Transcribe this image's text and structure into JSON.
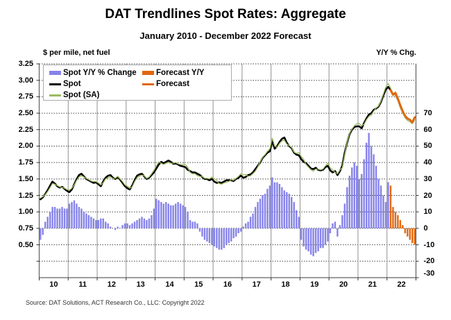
{
  "title": "DAT Trendlines Spot Rates: Aggregate",
  "subtitle": "January 2010 - December 2022 Forecast",
  "left_unit_label": "$ per mile, net fuel",
  "right_unit_label": "Y/Y % Chg.",
  "source": "Source: DAT Solutions, ACT Research Co., LLC: Copyright 2022",
  "colors": {
    "spot_yy_bar": "#8683ea",
    "forecast_orange": "#e2670e",
    "spot_line": "#000000",
    "spot_sa_line": "#9cbb61",
    "year_gridline": "#909090",
    "dotted_gridline": "#404040",
    "plot_border": "#606060"
  },
  "legend": [
    {
      "label": "Spot Y/Y % Change",
      "swatch": "bar",
      "color": "#8683ea",
      "col": 1,
      "row": 1
    },
    {
      "label": "Forecast Y/Y",
      "swatch": "bar",
      "color": "#e2670e",
      "col": 2,
      "row": 1
    },
    {
      "label": "Spot",
      "swatch": "line",
      "color": "#000000",
      "col": 1,
      "row": 2
    },
    {
      "label": "Forecast",
      "swatch": "line",
      "color": "#e2670e",
      "col": 2,
      "row": 2
    },
    {
      "label": "Spot (SA)",
      "swatch": "line",
      "color": "#9cbb61",
      "col": 1,
      "row": 3
    }
  ],
  "chart_data": {
    "type": "bar",
    "subtype": "combo-bar-line",
    "x_unit": "month",
    "x_start": "2010-01",
    "x_end": "2022-12",
    "months_total": 156,
    "x_tick_labels": [
      "10",
      "11",
      "12",
      "13",
      "14",
      "15",
      "16",
      "17",
      "18",
      "19",
      "20",
      "21",
      "22"
    ],
    "grid": true,
    "legend_position": "top-left",
    "left_axis": {
      "label": "$ per mile, net fuel",
      "min": 0,
      "max": 3.25,
      "grid_step": 0.25,
      "tick_labels": [
        "3.25",
        "3.00",
        "2.75",
        "2.50",
        "2.25",
        "2.00",
        "1.75",
        "1.50",
        "1.25",
        "1.00",
        "0.75",
        "0.50"
      ]
    },
    "right_axis": {
      "label": "Y/Y % Chg.",
      "min": -30,
      "max": 100,
      "ticks": [
        70,
        60,
        50,
        40,
        30,
        20,
        10,
        0,
        -10,
        -20,
        -30
      ]
    },
    "series": [
      {
        "name": "Spot Y/Y % Change",
        "type": "bar",
        "axis": "right",
        "color": "#8683ea",
        "start_index": 0,
        "values": [
          -7,
          -4,
          4,
          7,
          10,
          13,
          13,
          12,
          12,
          13,
          12,
          12,
          15,
          16,
          17,
          15,
          13,
          12,
          10,
          9,
          8,
          7,
          6,
          5,
          5,
          6,
          6,
          4,
          3,
          1,
          0,
          -1,
          1,
          0,
          2,
          3,
          3,
          2,
          3,
          4,
          5,
          6,
          7,
          6,
          5,
          6,
          8,
          12,
          18,
          17,
          16,
          15,
          16,
          15,
          14,
          14,
          15,
          16,
          15,
          14,
          13,
          10,
          5,
          4,
          4,
          3,
          -2,
          -5,
          -7,
          -8,
          -9,
          -10,
          -11,
          -12,
          -13,
          -13,
          -12,
          -10,
          -9,
          -8,
          -6,
          -5,
          -3,
          -2,
          1,
          3,
          4,
          7,
          9,
          13,
          16,
          18,
          20,
          21,
          24,
          26,
          31,
          28,
          28,
          27,
          25,
          23,
          22,
          21,
          19,
          16,
          11,
          7,
          -7,
          -11,
          -13,
          -14,
          -16,
          -17,
          -15,
          -14,
          -12,
          -12,
          -10,
          -8,
          -3,
          3,
          4,
          -5,
          2,
          8,
          15,
          25,
          32,
          37,
          40,
          38,
          30,
          33,
          42,
          52,
          58,
          50,
          45,
          38,
          30,
          26,
          20,
          16,
          28
        ]
      },
      {
        "name": "Forecast Y/Y",
        "type": "bar",
        "axis": "right",
        "color": "#e2670e",
        "start_index": 145,
        "values": [
          26,
          13,
          10,
          8,
          5,
          2,
          -3,
          -5,
          -7,
          -9,
          -10
        ]
      },
      {
        "name": "Spot",
        "type": "line",
        "axis": "left",
        "color": "#000000",
        "width": 2.6,
        "start_index": 0,
        "values": [
          1.19,
          1.22,
          1.27,
          1.33,
          1.4,
          1.46,
          1.43,
          1.39,
          1.37,
          1.38,
          1.35,
          1.32,
          1.3,
          1.34,
          1.42,
          1.5,
          1.56,
          1.58,
          1.54,
          1.5,
          1.48,
          1.46,
          1.44,
          1.45,
          1.42,
          1.39,
          1.46,
          1.52,
          1.55,
          1.56,
          1.52,
          1.5,
          1.53,
          1.49,
          1.44,
          1.39,
          1.36,
          1.34,
          1.4,
          1.48,
          1.55,
          1.57,
          1.58,
          1.54,
          1.5,
          1.52,
          1.56,
          1.6,
          1.66,
          1.72,
          1.76,
          1.74,
          1.76,
          1.78,
          1.76,
          1.73,
          1.74,
          1.72,
          1.7,
          1.69,
          1.68,
          1.64,
          1.62,
          1.6,
          1.6,
          1.58,
          1.56,
          1.53,
          1.5,
          1.5,
          1.48,
          1.5,
          1.46,
          1.44,
          1.45,
          1.44,
          1.46,
          1.48,
          1.48,
          1.48,
          1.47,
          1.5,
          1.52,
          1.55,
          1.52,
          1.53,
          1.56,
          1.57,
          1.6,
          1.65,
          1.7,
          1.75,
          1.82,
          1.86,
          1.9,
          1.92,
          2.08,
          1.96,
          2.0,
          2.06,
          2.11,
          2.13,
          2.05,
          2.0,
          1.97,
          1.9,
          1.87,
          1.86,
          1.8,
          1.76,
          1.74,
          1.7,
          1.66,
          1.65,
          1.67,
          1.64,
          1.63,
          1.64,
          1.68,
          1.7,
          1.63,
          1.6,
          1.62,
          1.56,
          1.62,
          1.7,
          1.9,
          2.05,
          2.18,
          2.25,
          2.29,
          2.3,
          2.3,
          2.27,
          2.35,
          2.42,
          2.48,
          2.5,
          2.55,
          2.57,
          2.6,
          2.67,
          2.77,
          2.86,
          2.9,
          2.85
        ]
      },
      {
        "name": "Spot (SA)",
        "type": "line",
        "axis": "left",
        "color": "#9cbb61",
        "width": 1.3,
        "start_index": 0,
        "values": [
          1.21,
          1.23,
          1.26,
          1.31,
          1.37,
          1.43,
          1.42,
          1.4,
          1.38,
          1.37,
          1.36,
          1.34,
          1.33,
          1.36,
          1.41,
          1.48,
          1.53,
          1.55,
          1.53,
          1.51,
          1.49,
          1.47,
          1.46,
          1.46,
          1.44,
          1.41,
          1.44,
          1.5,
          1.52,
          1.53,
          1.51,
          1.51,
          1.54,
          1.5,
          1.46,
          1.41,
          1.39,
          1.36,
          1.38,
          1.46,
          1.52,
          1.54,
          1.56,
          1.55,
          1.51,
          1.53,
          1.58,
          1.63,
          1.7,
          1.76,
          1.74,
          1.72,
          1.74,
          1.75,
          1.74,
          1.74,
          1.75,
          1.73,
          1.72,
          1.72,
          1.72,
          1.68,
          1.6,
          1.58,
          1.58,
          1.55,
          1.54,
          1.54,
          1.51,
          1.51,
          1.5,
          1.53,
          1.5,
          1.48,
          1.43,
          1.42,
          1.44,
          1.45,
          1.46,
          1.49,
          1.48,
          1.51,
          1.54,
          1.58,
          1.56,
          1.57,
          1.54,
          1.55,
          1.58,
          1.62,
          1.68,
          1.76,
          1.83,
          1.87,
          1.92,
          1.96,
          2.12,
          2.0,
          1.98,
          2.04,
          2.08,
          2.09,
          2.03,
          2.01,
          1.98,
          1.91,
          1.89,
          1.9,
          1.84,
          1.8,
          1.72,
          1.68,
          1.64,
          1.62,
          1.65,
          1.65,
          1.64,
          1.65,
          1.7,
          1.74,
          1.67,
          1.64,
          1.6,
          1.58,
          1.64,
          1.67,
          1.87,
          2.06,
          2.19,
          2.26,
          2.31,
          2.34,
          2.34,
          2.31,
          2.33,
          2.4,
          2.45,
          2.47,
          2.53,
          2.58,
          2.61,
          2.68,
          2.79,
          2.9,
          2.95,
          2.88,
          2.8,
          2.76,
          2.69,
          2.58,
          2.5,
          2.43,
          2.39,
          2.37,
          2.34,
          2.4
        ]
      },
      {
        "name": "Forecast",
        "type": "line",
        "axis": "left",
        "color": "#e2670e",
        "width": 3,
        "start_index": 145,
        "values": [
          2.85,
          2.78,
          2.81,
          2.72,
          2.62,
          2.53,
          2.46,
          2.42,
          2.4,
          2.36,
          2.44
        ]
      }
    ]
  }
}
